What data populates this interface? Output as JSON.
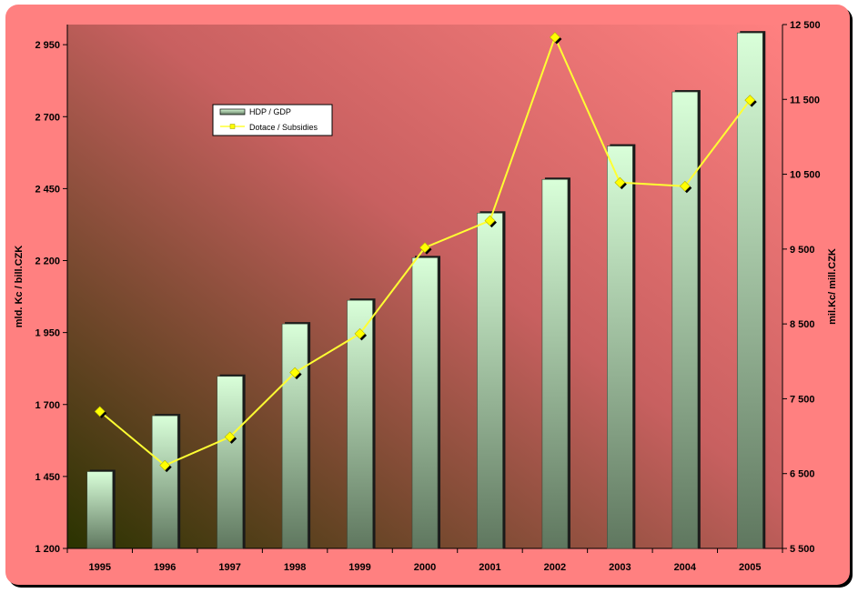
{
  "chart_data": {
    "type": "bar",
    "title": "",
    "categories": [
      "1995",
      "1996",
      "1997",
      "1998",
      "1999",
      "2000",
      "2001",
      "2002",
      "2003",
      "2004",
      "2005"
    ],
    "series": [
      {
        "name": "HDP / GDP",
        "type": "bar",
        "axis": "left",
        "values": [
          1467,
          1661,
          1798,
          1980,
          2062,
          2210,
          2365,
          2482,
          2598,
          2786,
          2991
        ]
      },
      {
        "name": "Dotace / Subsidies",
        "type": "line",
        "axis": "right",
        "values": [
          7330,
          6610,
          6990,
          7850,
          8370,
          9520,
          9880,
          12330,
          10390,
          10340,
          11490
        ]
      }
    ],
    "ylabel": "mld. Kc / bill.CZK",
    "ylabel_right": "mil.Kc/ mill.CZK",
    "ylim": [
      1200,
      3020
    ],
    "ylim_right": [
      5500,
      12500
    ],
    "yticks": [
      1200,
      1450,
      1700,
      1950,
      2200,
      2450,
      2700,
      2950
    ],
    "ytick_labels": [
      "1 200",
      "1 450",
      "1 700",
      "1 950",
      "2 200",
      "2 450",
      "2 700",
      "2 950"
    ],
    "yticks_right": [
      5500,
      6500,
      7500,
      8500,
      9500,
      10500,
      11500,
      12500
    ],
    "ytick_labels_right": [
      "5 500",
      "6 500",
      "7 500",
      "8 500",
      "9 500",
      "10 500",
      "11 500",
      "12 500"
    ],
    "legend_position": "top-left",
    "grid": false,
    "colors": {
      "frame": "#ff8080",
      "plot_bg_dark": "#2a3300",
      "plot_bg_light": "#ff8080",
      "bar_top": "#d9ffd9",
      "bar_bottom": "#5f775f",
      "line": "#ffff33",
      "marker": "#ffff00"
    }
  }
}
